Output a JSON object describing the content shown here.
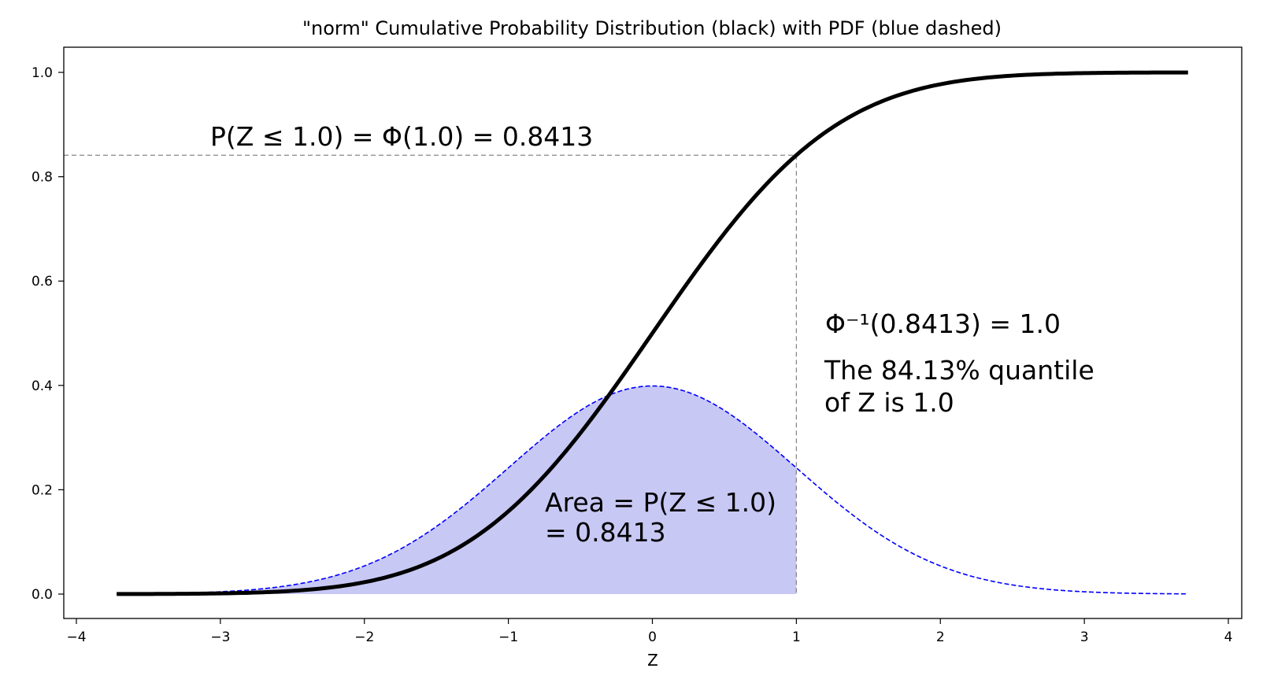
{
  "chart_data": {
    "type": "line",
    "title": "\"norm\" Cumulative Probability Distribution (black) with PDF (blue dashed)",
    "xlabel": "Z",
    "ylabel": "",
    "xlim": [
      -4,
      4
    ],
    "ylim": [
      0,
      1
    ],
    "x_ticks": [
      -4,
      -3,
      -2,
      -1,
      0,
      1,
      2,
      3,
      4
    ],
    "x_tick_labels": [
      "−4",
      "−3",
      "−2",
      "−1",
      "0",
      "1",
      "2",
      "3",
      "4"
    ],
    "y_ticks": [
      0.0,
      0.2,
      0.4,
      0.6,
      0.8,
      1.0
    ],
    "y_tick_labels": [
      "0.0",
      "0.2",
      "0.4",
      "0.6",
      "0.8",
      "1.0"
    ],
    "grid": false,
    "colors": {
      "cdf": "#000000",
      "pdf": "#0000ff",
      "fill": "#c8c8f5",
      "guide": "#888888"
    },
    "x": [
      -3.72,
      -3.5,
      -3.25,
      -3.0,
      -2.75,
      -2.5,
      -2.25,
      -2.0,
      -1.75,
      -1.5,
      -1.25,
      -1.0,
      -0.75,
      -0.5,
      -0.25,
      0.0,
      0.25,
      0.5,
      0.75,
      1.0,
      1.25,
      1.5,
      1.75,
      2.0,
      2.25,
      2.5,
      2.75,
      3.0,
      3.25,
      3.5,
      3.72
    ],
    "series": [
      {
        "values": [
          0.0001,
          0.0002,
          0.0006,
          0.0013,
          0.003,
          0.0062,
          0.0122,
          0.0228,
          0.0401,
          0.0668,
          0.1056,
          0.1587,
          0.2266,
          0.3085,
          0.4013,
          0.5,
          0.5987,
          0.6915,
          0.7734,
          0.8413,
          0.8944,
          0.9332,
          0.9599,
          0.9772,
          0.9878,
          0.9938,
          0.997,
          0.9987,
          0.9994,
          0.9998,
          0.9999
        ]
      },
      {
        "values": [
          0.0004,
          0.0009,
          0.002,
          0.0044,
          0.0091,
          0.0175,
          0.0317,
          0.054,
          0.0863,
          0.1295,
          0.1826,
          0.242,
          0.3011,
          0.3521,
          0.3867,
          0.3989,
          0.3867,
          0.3521,
          0.3011,
          0.242,
          0.1826,
          0.1295,
          0.0863,
          0.054,
          0.0317,
          0.0175,
          0.0091,
          0.0044,
          0.002,
          0.0009,
          0.0004
        ]
      }
    ],
    "shaded_area": {
      "x_from": -3.72,
      "x_to": 1.0
    },
    "guide_lines": {
      "x": 1.0,
      "y": 0.8413
    },
    "annotations": [
      "P(Z ≤ 1.0) = Φ(1.0) = 0.8413",
      "Φ⁻¹(0.8413) = 1.0",
      "The  84.13% quantile",
      "of Z is 1.0",
      "Area = P(Z ≤ 1.0)",
      "= 0.8413"
    ]
  }
}
